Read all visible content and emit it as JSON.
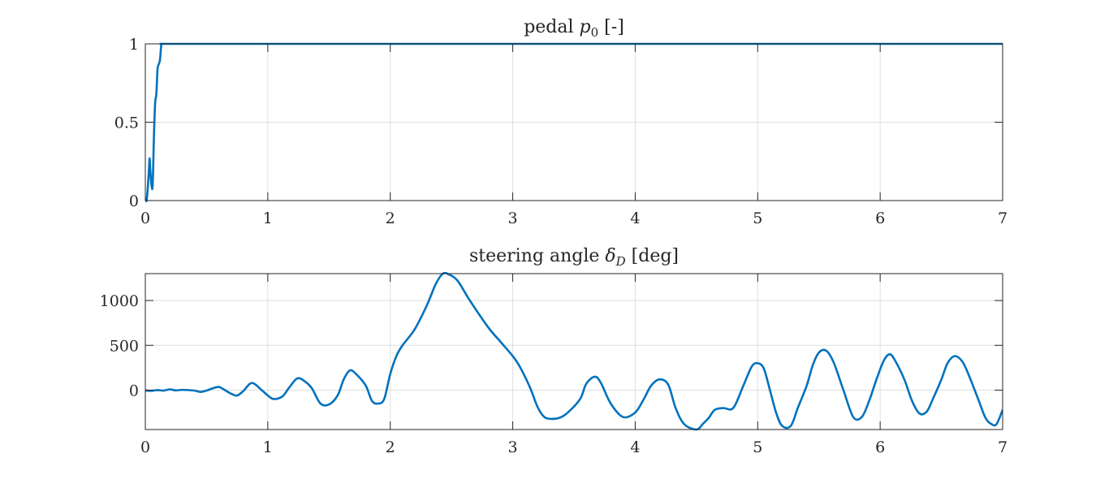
{
  "chart_data": [
    {
      "type": "line",
      "title": "pedal p0 [-]",
      "title_parts": {
        "pre": "pedal ",
        "symbol": "p",
        "sub": "0",
        "post": " [-]"
      },
      "xlabel": "",
      "ylabel": "",
      "xlim": [
        0,
        7
      ],
      "ylim": [
        0,
        1
      ],
      "xticks": [
        0,
        1,
        2,
        3,
        4,
        5,
        6,
        7
      ],
      "yticks": [
        0,
        0.5,
        1
      ],
      "xtick_labels": [
        "0",
        "1",
        "2",
        "3",
        "4",
        "5",
        "6",
        "7"
      ],
      "ytick_labels": [
        "0",
        "0.5",
        "1"
      ],
      "grid": true,
      "line_color": "#0072BD",
      "series": [
        {
          "x": [
            0,
            0.01,
            0.02,
            0.03,
            0.035,
            0.04,
            0.05,
            0.06,
            0.07,
            0.08,
            0.09,
            0.1,
            0.11,
            0.12,
            0.13,
            0.14,
            0.15,
            0.2,
            1,
            2,
            3,
            4,
            5,
            6,
            7
          ],
          "y": [
            0,
            0,
            0.08,
            0.2,
            0.27,
            0.2,
            0.1,
            0.1,
            0.4,
            0.62,
            0.68,
            0.84,
            0.87,
            0.9,
            0.99,
            1,
            1,
            1,
            1,
            1,
            1,
            1,
            1,
            1,
            1
          ]
        }
      ]
    },
    {
      "type": "line",
      "title": "steering angle δD [deg]",
      "title_parts": {
        "pre": "steering angle ",
        "symbol": "δ",
        "sub": "D",
        "post": " [deg]"
      },
      "xlabel": "",
      "ylabel": "",
      "xlim": [
        0,
        7
      ],
      "ylim": [
        -440,
        1300
      ],
      "xticks": [
        0,
        1,
        2,
        3,
        4,
        5,
        6,
        7
      ],
      "yticks": [
        0,
        500,
        1000
      ],
      "xtick_labels": [
        "0",
        "1",
        "2",
        "3",
        "4",
        "5",
        "6",
        "7"
      ],
      "ytick_labels": [
        "0",
        "500",
        "1000"
      ],
      "grid": true,
      "line_color": "#0072BD",
      "series": [
        {
          "x": [
            0,
            0.05,
            0.1,
            0.15,
            0.2,
            0.25,
            0.3,
            0.4,
            0.45,
            0.5,
            0.55,
            0.6,
            0.65,
            0.7,
            0.75,
            0.8,
            0.87,
            0.95,
            1.0,
            1.05,
            1.12,
            1.17,
            1.24,
            1.3,
            1.36,
            1.43,
            1.5,
            1.57,
            1.62,
            1.67,
            1.72,
            1.8,
            1.85,
            1.9,
            1.95,
            2.0,
            2.05,
            2.1,
            2.2,
            2.3,
            2.37,
            2.43,
            2.48,
            2.55,
            2.65,
            2.8,
            2.9,
            3.0,
            3.05,
            3.1,
            3.15,
            3.2,
            3.25,
            3.3,
            3.38,
            3.45,
            3.55,
            3.6,
            3.67,
            3.72,
            3.8,
            3.9,
            4.0,
            4.07,
            4.13,
            4.2,
            4.27,
            4.33,
            4.4,
            4.5,
            4.55,
            4.6,
            4.65,
            4.72,
            4.8,
            4.88,
            4.95,
            5.0,
            5.05,
            5.1,
            5.15,
            5.2,
            5.27,
            5.33,
            5.4,
            5.45,
            5.5,
            5.56,
            5.62,
            5.7,
            5.78,
            5.85,
            5.91,
            5.97,
            6.03,
            6.08,
            6.13,
            6.2,
            6.26,
            6.32,
            6.38,
            6.43,
            6.5,
            6.55,
            6.61,
            6.67,
            6.72,
            6.8,
            6.86,
            6.91,
            6.95,
            7.0
          ],
          "y": [
            -5,
            -8,
            0,
            -5,
            8,
            -3,
            3,
            -5,
            -20,
            -5,
            20,
            35,
            0,
            -40,
            -60,
            -10,
            80,
            0,
            -60,
            -100,
            -70,
            20,
            130,
            100,
            20,
            -150,
            -160,
            -60,
            120,
            220,
            180,
            50,
            -120,
            -150,
            -100,
            180,
            380,
            500,
            680,
            950,
            1180,
            1300,
            1290,
            1220,
            1000,
            700,
            540,
            380,
            280,
            150,
            0,
            -180,
            -290,
            -320,
            -310,
            -250,
            -100,
            70,
            150,
            80,
            -150,
            -300,
            -250,
            -100,
            50,
            120,
            60,
            -200,
            -380,
            -440,
            -380,
            -310,
            -220,
            -200,
            -200,
            40,
            260,
            300,
            240,
            0,
            -250,
            -400,
            -400,
            -190,
            50,
            280,
            420,
            440,
            310,
            0,
            -300,
            -300,
            -120,
            120,
            330,
            400,
            310,
            110,
            -120,
            -260,
            -240,
            -100,
            120,
            300,
            380,
            320,
            180,
            -100,
            -310,
            -380,
            -380,
            -220
          ]
        }
      ]
    }
  ]
}
